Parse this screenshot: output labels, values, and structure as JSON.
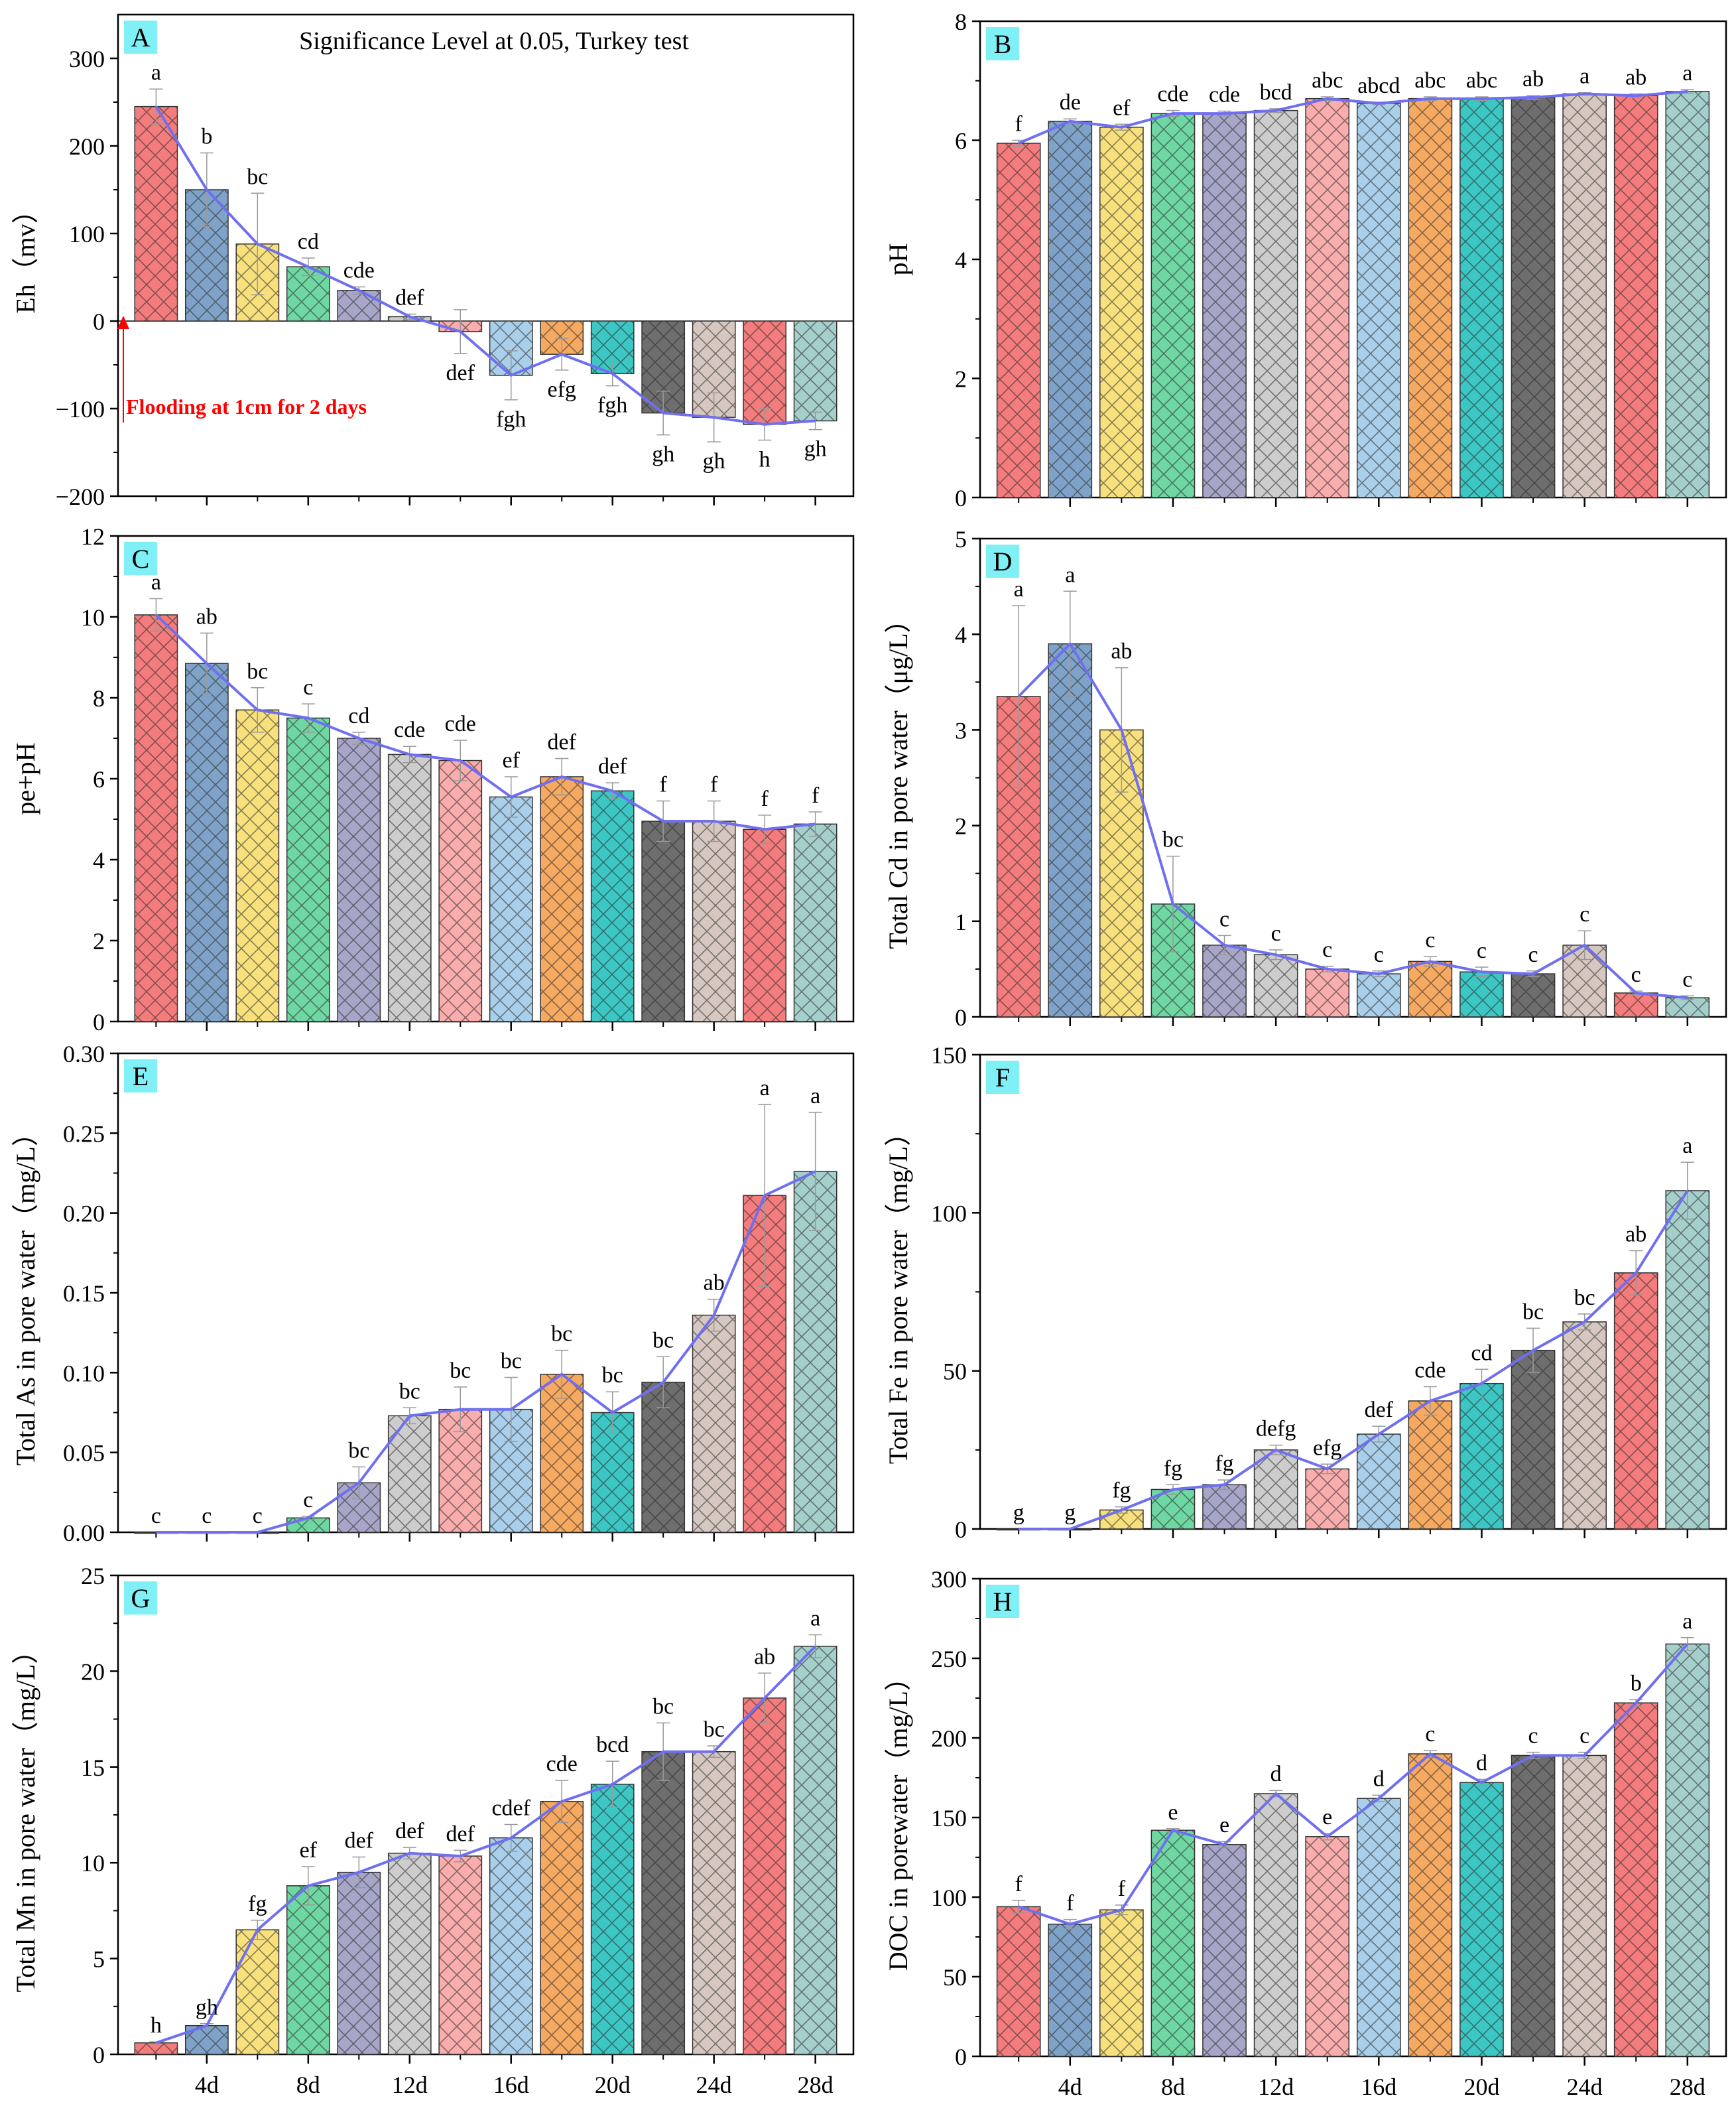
{
  "figure": {
    "x_ticks": [
      "4d",
      "8d",
      "12d",
      "16d",
      "20d",
      "24d",
      "28d"
    ],
    "bar_colors": [
      "#F47C7C",
      "#7FA3C8",
      "#F8E17D",
      "#6FD7A2",
      "#A7A6C8",
      "#CDCDCD",
      "#F9ADAD",
      "#A9CFEA",
      "#F6A961",
      "#3CC7C4",
      "#6E6E6E",
      "#D6C8C0",
      "#F47C7C",
      "#A5CFCB"
    ],
    "line_color": "#6F6FF0",
    "label_bg": "#7FF0F5",
    "annotation_color": "#FF0000"
  },
  "chart_data": [
    {
      "panel": "A",
      "type": "bar",
      "title": "Significance Level at 0.05, Turkey test",
      "ylabel": "Eh（mv）",
      "ylim": [
        -200,
        350
      ],
      "yticks": [
        -200,
        -100,
        0,
        100,
        200,
        300
      ],
      "ytick_labels": [
        "−200",
        "−100",
        "0",
        "100",
        "200",
        "300"
      ],
      "values": [
        245,
        150,
        88,
        62,
        35,
        5,
        -12,
        -62,
        -38,
        -60,
        -105,
        -110,
        -118,
        -114
      ],
      "errors": [
        20,
        42,
        58,
        10,
        4,
        3,
        25,
        28,
        18,
        14,
        25,
        28,
        18,
        10
      ],
      "letters": [
        "a",
        "b",
        "bc",
        "cd",
        "cde",
        "def",
        "def",
        "fgh",
        "efg",
        "fgh",
        "gh",
        "gh",
        "h",
        "gh"
      ],
      "annotation": "Flooding at 1cm for 2 days"
    },
    {
      "panel": "B",
      "type": "bar",
      "ylabel": "pH",
      "ylim": [
        0,
        8
      ],
      "yticks": [
        0,
        2,
        4,
        6,
        8
      ],
      "ytick_labels": [
        "0",
        "2",
        "4",
        "6",
        "8"
      ],
      "values": [
        5.95,
        6.32,
        6.22,
        6.45,
        6.45,
        6.5,
        6.7,
        6.62,
        6.7,
        6.7,
        6.72,
        6.78,
        6.75,
        6.82
      ],
      "errors": [
        0.05,
        0.04,
        0.05,
        0.05,
        0.04,
        0.03,
        0.03,
        0.02,
        0.03,
        0.03,
        0.03,
        0.02,
        0.03,
        0.03
      ],
      "letters": [
        "f",
        "de",
        "ef",
        "cde",
        "cde",
        "bcd",
        "abc",
        "abcd",
        "abc",
        "abc",
        "ab",
        "a",
        "ab",
        "a"
      ]
    },
    {
      "panel": "C",
      "type": "bar",
      "ylabel": "pe+pH",
      "ylim": [
        0,
        12
      ],
      "yticks": [
        0,
        2,
        4,
        6,
        8,
        10,
        12
      ],
      "ytick_labels": [
        "0",
        "2",
        "4",
        "6",
        "8",
        "10",
        "12"
      ],
      "values": [
        10.05,
        8.85,
        7.7,
        7.5,
        7.0,
        6.6,
        6.45,
        5.55,
        6.05,
        5.7,
        4.95,
        4.95,
        4.75,
        4.88
      ],
      "errors": [
        0.4,
        0.75,
        0.55,
        0.35,
        0.15,
        0.2,
        0.5,
        0.5,
        0.45,
        0.2,
        0.5,
        0.5,
        0.35,
        0.3
      ],
      "letters": [
        "a",
        "ab",
        "bc",
        "c",
        "cd",
        "cde",
        "cde",
        "ef",
        "def",
        "def",
        "f",
        "f",
        "f",
        "f"
      ]
    },
    {
      "panel": "D",
      "type": "bar",
      "ylabel": "Total Cd in pore water（μg/L）",
      "ylim": [
        0,
        5
      ],
      "yticks": [
        0,
        1,
        2,
        3,
        4,
        5
      ],
      "ytick_labels": [
        "0",
        "1",
        "2",
        "3",
        "4",
        "5"
      ],
      "values": [
        3.35,
        3.9,
        3.0,
        1.18,
        0.75,
        0.65,
        0.5,
        0.45,
        0.58,
        0.47,
        0.45,
        0.75,
        0.25,
        0.2
      ],
      "errors": [
        0.95,
        0.55,
        0.65,
        0.5,
        0.1,
        0.05,
        0.03,
        0.03,
        0.05,
        0.05,
        0.03,
        0.15,
        0.02,
        0.02
      ],
      "letters": [
        "a",
        "a",
        "ab",
        "bc",
        "c",
        "c",
        "c",
        "c",
        "c",
        "c",
        "c",
        "c",
        "c",
        "c"
      ]
    },
    {
      "panel": "E",
      "type": "bar",
      "ylabel": "Total As in pore water（mg/L）",
      "ylim": [
        0,
        0.3
      ],
      "yticks": [
        0,
        0.05,
        0.1,
        0.15,
        0.2,
        0.25,
        0.3
      ],
      "ytick_labels": [
        "0.00",
        "0.05",
        "0.10",
        "0.15",
        "0.20",
        "0.25",
        "0.30"
      ],
      "values": [
        0.0,
        0.0,
        0.0,
        0.009,
        0.031,
        0.073,
        0.077,
        0.077,
        0.099,
        0.075,
        0.094,
        0.136,
        0.211,
        0.226
      ],
      "errors": [
        0,
        0,
        0,
        0.001,
        0.01,
        0.005,
        0.014,
        0.02,
        0.015,
        0.013,
        0.016,
        0.01,
        0.057,
        0.037
      ],
      "letters": [
        "c",
        "c",
        "c",
        "c",
        "bc",
        "bc",
        "bc",
        "bc",
        "bc",
        "bc",
        "bc",
        "ab",
        "a",
        "a"
      ]
    },
    {
      "panel": "F",
      "type": "bar",
      "ylabel": "Total Fe in pore water（mg/L）",
      "ylim": [
        0,
        150
      ],
      "yticks": [
        0,
        50,
        100,
        150
      ],
      "ytick_labels": [
        "0",
        "50",
        "100",
        "150"
      ],
      "values": [
        0.0,
        0.0,
        6.0,
        12.5,
        14.0,
        25.0,
        19.0,
        30.0,
        40.5,
        46.0,
        56.5,
        65.5,
        81.0,
        107.0
      ],
      "errors": [
        0,
        0,
        1,
        1.5,
        1.5,
        1.5,
        1.5,
        2.5,
        4.5,
        4.5,
        7,
        2.5,
        7,
        9
      ],
      "letters": [
        "g",
        "g",
        "fg",
        "fg",
        "fg",
        "defg",
        "efg",
        "def",
        "cde",
        "cd",
        "bc",
        "bc",
        "ab",
        "a"
      ]
    },
    {
      "panel": "G",
      "type": "bar",
      "ylabel": "Total Mn in pore water（mg/L）",
      "ylim": [
        0,
        25
      ],
      "yticks": [
        0,
        5,
        10,
        15,
        20,
        25
      ],
      "ytick_labels": [
        "0",
        "5",
        "10",
        "15",
        "20",
        "25"
      ],
      "values": [
        0.6,
        1.5,
        6.5,
        8.8,
        9.5,
        10.5,
        10.35,
        11.3,
        13.2,
        14.1,
        15.8,
        15.8,
        18.6,
        21.3
      ],
      "errors": [
        0.05,
        0.1,
        0.5,
        1.0,
        0.8,
        0.3,
        0.3,
        0.7,
        1.1,
        1.2,
        1.5,
        0.3,
        1.3,
        0.6
      ],
      "letters": [
        "h",
        "gh",
        "fg",
        "ef",
        "def",
        "def",
        "def",
        "cdef",
        "cde",
        "bcd",
        "bc",
        "bc",
        "ab",
        "a"
      ]
    },
    {
      "panel": "H",
      "type": "bar",
      "ylabel": "DOC in porewater（mg/L）",
      "ylim": [
        0,
        300
      ],
      "yticks": [
        0,
        50,
        100,
        150,
        200,
        250,
        300
      ],
      "ytick_labels": [
        "0",
        "50",
        "100",
        "150",
        "200",
        "250",
        "300"
      ],
      "values": [
        94,
        83,
        92,
        142,
        133,
        165,
        138,
        162,
        190,
        172,
        189,
        189,
        222,
        259
      ],
      "errors": [
        4,
        3,
        3,
        1,
        2,
        2,
        2,
        2,
        2,
        2,
        2,
        2,
        2,
        4
      ],
      "letters": [
        "f",
        "f",
        "f",
        "e",
        "e",
        "d",
        "e",
        "d",
        "c",
        "d",
        "c",
        "c",
        "b",
        "a"
      ]
    }
  ]
}
